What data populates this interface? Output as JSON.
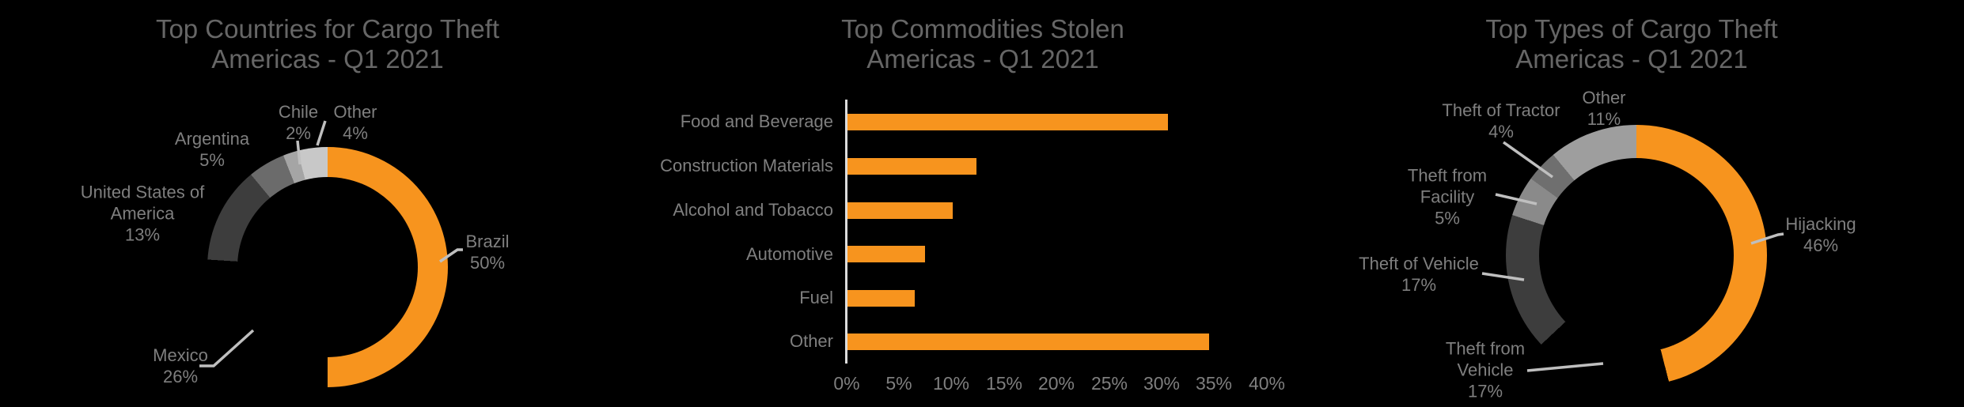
{
  "background": "#000000",
  "styles": {
    "accent_orange": "#F7941E",
    "title_color": "#666666",
    "label_color": "#7F7F7F",
    "leader_line_color": "#BFBFBF",
    "axis_line_color": "#DCDCDC"
  },
  "chart_data": [
    {
      "type": "donut",
      "title": "Top Countries for Cargo Theft",
      "subtitle": "Americas - Q1 2021",
      "labels": [
        "Brazil",
        "Mexico",
        "United States of America",
        "Argentina",
        "Chile",
        "Other"
      ],
      "values": [
        50,
        26,
        13,
        5,
        2,
        4
      ],
      "pct_labels": [
        "50%",
        "26%",
        "13%",
        "5%",
        "2%",
        "4%"
      ],
      "colors": [
        "#F7941E",
        "#000000",
        "#3D3D3D",
        "#6B6B6B",
        "#A5A5A5",
        "#C8C8C8"
      ],
      "hole": 0.75,
      "start_angle_deg": 0,
      "direction": "clockwise",
      "legend": "none",
      "data_label_style": "category name + percentage, outside with leader lines"
    },
    {
      "type": "bar",
      "orientation": "horizontal",
      "title": "Top Commodities Stolen",
      "subtitle": "Americas - Q1 2021",
      "categories": [
        "Food and Beverage",
        "Construction Materials",
        "Alcohol and Tobacco",
        "Automotive",
        "Fuel",
        "Other"
      ],
      "values": [
        30.5,
        12.3,
        10,
        7.4,
        6.4,
        34.4
      ],
      "bar_color": "#F7941E",
      "xlim": [
        0,
        40
      ],
      "x_ticks": [
        "0%",
        "5%",
        "10%",
        "15%",
        "20%",
        "25%",
        "30%",
        "35%",
        "40%"
      ],
      "grid": "off",
      "legend": "none",
      "xlabel": "",
      "ylabel": ""
    },
    {
      "type": "donut",
      "title": "Top Types of Cargo Theft",
      "subtitle": "Americas - Q1 2021",
      "labels": [
        "Hijacking",
        "Theft from Vehicle",
        "Theft of Vehicle",
        "Theft from Facility",
        "Theft of Tractor",
        "Other"
      ],
      "values": [
        46,
        17,
        17,
        5,
        4,
        11
      ],
      "pct_labels": [
        "46%",
        "17%",
        "17%",
        "5%",
        "4%",
        "11%"
      ],
      "colors": [
        "#F7941E",
        "#000000",
        "#3D3D3D",
        "#8A8A8A",
        "#6F6F6F",
        "#9E9E9E"
      ],
      "hole": 0.75,
      "start_angle_deg": 0,
      "direction": "clockwise",
      "legend": "none",
      "data_label_style": "category name + percentage, outside with leader lines"
    }
  ]
}
